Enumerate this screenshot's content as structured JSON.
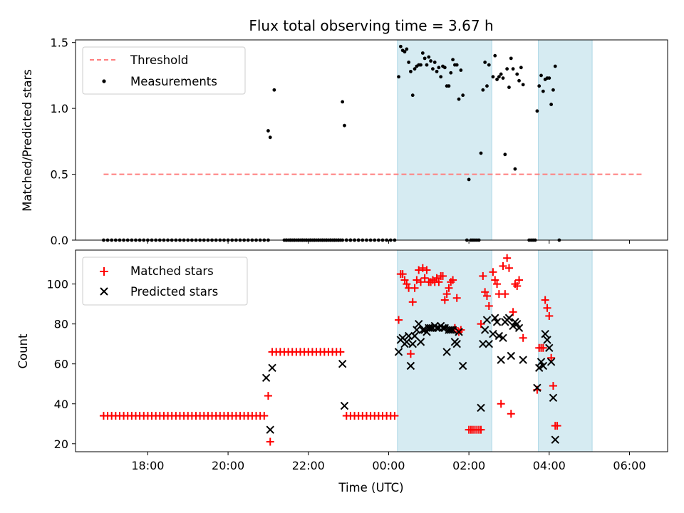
{
  "chart_data": {
    "title": "Flux total observing time = 3.67 h",
    "xlabel": "Time (UTC)",
    "x_units": "hours since 00:00 UTC (negative = previous day)",
    "x_range": [
      -7.8,
      6.95
    ],
    "x_ticks": [
      {
        "value": -6,
        "label": "18:00"
      },
      {
        "value": -4,
        "label": "20:00"
      },
      {
        "value": -2,
        "label": "22:00"
      },
      {
        "value": 0,
        "label": "00:00"
      },
      {
        "value": 2,
        "label": "02:00"
      },
      {
        "value": 4,
        "label": "04:00"
      },
      {
        "value": 6,
        "label": "06:00"
      }
    ],
    "shaded_intervals": [
      [
        0.22,
        2.57
      ],
      [
        3.73,
        5.07
      ]
    ],
    "shade_color": "#add8e6",
    "panels": [
      {
        "type": "scatter",
        "ylabel": "Matched/Predicted stars",
        "ylim": [
          0,
          1.52
        ],
        "y_ticks": [
          {
            "value": 0,
            "label": "0.0"
          },
          {
            "value": 0.5,
            "label": "0.5"
          },
          {
            "value": 1.0,
            "label": "1.0"
          },
          {
            "value": 1.5,
            "label": "1.5"
          }
        ],
        "legend": [
          {
            "label": "Threshold",
            "style": "dashed-line",
            "color": "#ff7f7f"
          },
          {
            "label": "Measurements",
            "style": "dot",
            "color": "#000000"
          }
        ],
        "threshold": {
          "name": "Threshold",
          "value": 0.5,
          "x_range": [
            -7.1,
            6.35
          ],
          "color": "#ff7f7f"
        },
        "measurements_zero": {
          "x_start": -7.1,
          "x_end": -3.0,
          "step": 0.1
        },
        "measurements_zero_2": {
          "x_start": -2.55,
          "x_end": -0.7,
          "step": 0.1
        },
        "measurements_zero_3": {
          "x_start": -1.05,
          "x_end": 0.2,
          "step": 0.1
        },
        "measurements": [
          [
            -2.6,
            0
          ],
          [
            -2.55,
            0
          ],
          [
            -2.5,
            0
          ],
          [
            -2.45,
            0
          ],
          [
            -2.4,
            0
          ],
          [
            -2.35,
            0
          ],
          [
            -2.3,
            0
          ],
          [
            -2.25,
            0
          ],
          [
            -2.2,
            0
          ],
          [
            -2.15,
            0
          ],
          [
            -2.1,
            0
          ],
          [
            -2.05,
            0
          ],
          [
            -2.0,
            0
          ],
          [
            -1.95,
            0
          ],
          [
            -1.9,
            0
          ],
          [
            -1.85,
            0
          ],
          [
            -1.8,
            0
          ],
          [
            -1.75,
            0
          ],
          [
            -1.7,
            0
          ],
          [
            -1.65,
            0
          ],
          [
            -1.6,
            0
          ],
          [
            -1.55,
            0
          ],
          [
            -1.5,
            0
          ],
          [
            -1.45,
            0
          ],
          [
            -1.4,
            0
          ],
          [
            -1.35,
            0
          ],
          [
            -1.3,
            0
          ],
          [
            -1.25,
            0
          ],
          [
            -1.2,
            0
          ],
          [
            -3.0,
            0.83
          ],
          [
            -2.95,
            0.78
          ],
          [
            -2.85,
            1.14
          ],
          [
            -1.15,
            1.05
          ],
          [
            -1.1,
            0.87
          ],
          [
            0.25,
            1.24
          ],
          [
            0.3,
            1.47
          ],
          [
            0.35,
            1.44
          ],
          [
            0.4,
            1.43
          ],
          [
            0.45,
            1.45
          ],
          [
            0.5,
            1.35
          ],
          [
            0.55,
            1.28
          ],
          [
            0.6,
            1.1
          ],
          [
            0.65,
            1.3
          ],
          [
            0.7,
            1.32
          ],
          [
            0.75,
            1.33
          ],
          [
            0.8,
            1.33
          ],
          [
            0.85,
            1.42
          ],
          [
            0.9,
            1.38
          ],
          [
            0.95,
            1.33
          ],
          [
            1.0,
            1.39
          ],
          [
            1.05,
            1.36
          ],
          [
            1.1,
            1.3
          ],
          [
            1.15,
            1.35
          ],
          [
            1.2,
            1.28
          ],
          [
            1.25,
            1.31
          ],
          [
            1.3,
            1.24
          ],
          [
            1.35,
            1.32
          ],
          [
            1.4,
            1.31
          ],
          [
            1.45,
            1.17
          ],
          [
            1.5,
            1.17
          ],
          [
            1.55,
            1.27
          ],
          [
            1.6,
            1.37
          ],
          [
            1.65,
            1.33
          ],
          [
            1.7,
            1.33
          ],
          [
            1.75,
            1.07
          ],
          [
            1.8,
            1.29
          ],
          [
            1.85,
            1.1
          ],
          [
            1.95,
            0.0
          ],
          [
            2.0,
            0.46
          ],
          [
            2.05,
            0.0
          ],
          [
            2.1,
            0.0
          ],
          [
            2.15,
            0.0
          ],
          [
            2.2,
            0.0
          ],
          [
            2.25,
            0.0
          ],
          [
            2.3,
            0.66
          ],
          [
            2.35,
            1.14
          ],
          [
            2.4,
            1.35
          ],
          [
            2.45,
            1.17
          ],
          [
            2.5,
            1.33
          ],
          [
            2.6,
            1.24
          ],
          [
            2.65,
            1.4
          ],
          [
            2.7,
            1.22
          ],
          [
            2.75,
            1.24
          ],
          [
            2.8,
            1.26
          ],
          [
            2.85,
            1.23
          ],
          [
            2.9,
            0.65
          ],
          [
            2.95,
            1.3
          ],
          [
            3.0,
            1.16
          ],
          [
            3.05,
            1.38
          ],
          [
            3.1,
            1.3
          ],
          [
            3.15,
            0.54
          ],
          [
            3.2,
            1.26
          ],
          [
            3.25,
            1.21
          ],
          [
            3.3,
            1.31
          ],
          [
            3.35,
            1.18
          ],
          [
            3.5,
            0.0
          ],
          [
            3.55,
            0.0
          ],
          [
            3.6,
            0.0
          ],
          [
            3.65,
            0.0
          ],
          [
            3.7,
            0.98
          ],
          [
            3.75,
            1.17
          ],
          [
            3.8,
            1.25
          ],
          [
            3.85,
            1.13
          ],
          [
            3.9,
            1.22
          ],
          [
            3.95,
            1.23
          ],
          [
            4.0,
            1.23
          ],
          [
            4.05,
            1.03
          ],
          [
            4.1,
            1.14
          ],
          [
            4.15,
            1.32
          ],
          [
            4.25,
            0.0
          ]
        ]
      },
      {
        "type": "scatter",
        "ylabel": "Count",
        "ylim": [
          16,
          117
        ],
        "y_ticks": [
          {
            "value": 20,
            "label": "20"
          },
          {
            "value": 40,
            "label": "40"
          },
          {
            "value": 60,
            "label": "60"
          },
          {
            "value": 80,
            "label": "80"
          },
          {
            "value": 100,
            "label": "100"
          }
        ],
        "legend": [
          {
            "label": "Matched stars",
            "style": "plus",
            "color": "#ff0000"
          },
          {
            "label": "Predicted stars",
            "style": "x",
            "color": "#000000"
          }
        ],
        "matched_stars": [
          [
            -3.0,
            44
          ],
          [
            -2.95,
            21
          ],
          [
            0.25,
            82
          ],
          [
            0.3,
            105
          ],
          [
            0.35,
            105
          ],
          [
            0.4,
            102
          ],
          [
            0.45,
            100
          ],
          [
            0.5,
            98
          ],
          [
            0.55,
            65
          ],
          [
            0.6,
            91
          ],
          [
            0.65,
            98
          ],
          [
            0.7,
            102
          ],
          [
            0.75,
            107
          ],
          [
            0.8,
            101
          ],
          [
            0.85,
            108
          ],
          [
            0.9,
            103
          ],
          [
            0.95,
            107
          ],
          [
            1.0,
            101
          ],
          [
            1.05,
            101
          ],
          [
            1.1,
            102
          ],
          [
            1.15,
            101
          ],
          [
            1.2,
            103
          ],
          [
            1.25,
            101
          ],
          [
            1.3,
            104
          ],
          [
            1.35,
            104
          ],
          [
            1.4,
            92
          ],
          [
            1.45,
            95
          ],
          [
            1.5,
            98
          ],
          [
            1.55,
            101
          ],
          [
            1.6,
            102
          ],
          [
            1.65,
            78
          ],
          [
            1.7,
            93
          ],
          [
            1.75,
            76
          ],
          [
            1.8,
            77
          ],
          [
            2.3,
            80
          ],
          [
            2.35,
            104
          ],
          [
            2.4,
            96
          ],
          [
            2.45,
            94
          ],
          [
            2.5,
            89
          ],
          [
            2.6,
            106
          ],
          [
            2.65,
            102
          ],
          [
            2.7,
            100
          ],
          [
            2.75,
            95
          ],
          [
            2.8,
            40
          ],
          [
            2.85,
            109
          ],
          [
            2.9,
            95
          ],
          [
            2.95,
            113
          ],
          [
            3.0,
            108
          ],
          [
            3.05,
            35
          ],
          [
            3.1,
            86
          ],
          [
            3.15,
            100
          ],
          [
            3.2,
            99
          ],
          [
            3.25,
            102
          ],
          [
            3.35,
            73
          ],
          [
            3.7,
            47
          ],
          [
            3.75,
            68
          ],
          [
            3.8,
            68
          ],
          [
            3.85,
            68
          ],
          [
            3.9,
            92
          ],
          [
            3.95,
            88
          ],
          [
            4.0,
            84
          ],
          [
            4.05,
            63
          ],
          [
            4.1,
            49
          ],
          [
            4.15,
            29
          ],
          [
            4.2,
            29
          ]
        ],
        "matched_flat_runs": [
          {
            "value": 34,
            "x_start": -7.1,
            "x_end": -3.05,
            "step": 0.1
          },
          {
            "value": 66,
            "x_start": -2.9,
            "x_end": -1.2,
            "step": 0.1
          },
          {
            "value": 34,
            "x_start": -1.05,
            "x_end": 0.2,
            "step": 0.1
          },
          {
            "value": 27,
            "x_start": 2.0,
            "x_end": 2.3,
            "step": 0.05
          }
        ],
        "predicted_stars": [
          [
            -3.05,
            53
          ],
          [
            -2.95,
            27
          ],
          [
            -2.9,
            58
          ],
          [
            -1.15,
            60
          ],
          [
            -1.1,
            39
          ],
          [
            0.25,
            66
          ],
          [
            0.3,
            72
          ],
          [
            0.35,
            73
          ],
          [
            0.4,
            70
          ],
          [
            0.45,
            71
          ],
          [
            0.5,
            74
          ],
          [
            0.55,
            59
          ],
          [
            0.6,
            70
          ],
          [
            0.65,
            74
          ],
          [
            0.7,
            77
          ],
          [
            0.75,
            80
          ],
          [
            0.8,
            71
          ],
          [
            0.85,
            77
          ],
          [
            0.9,
            77
          ],
          [
            0.95,
            76
          ],
          [
            1.0,
            78
          ],
          [
            1.05,
            78
          ],
          [
            1.1,
            78
          ],
          [
            1.15,
            79
          ],
          [
            1.2,
            78
          ],
          [
            1.25,
            78
          ],
          [
            1.3,
            79
          ],
          [
            1.35,
            78
          ],
          [
            1.4,
            78
          ],
          [
            1.45,
            66
          ],
          [
            1.5,
            77
          ],
          [
            1.55,
            77
          ],
          [
            1.6,
            77
          ],
          [
            1.65,
            71
          ],
          [
            1.7,
            70
          ],
          [
            1.75,
            76
          ],
          [
            1.85,
            59
          ],
          [
            2.3,
            38
          ],
          [
            2.35,
            70
          ],
          [
            2.4,
            77
          ],
          [
            2.45,
            82
          ],
          [
            2.5,
            70
          ],
          [
            2.6,
            75
          ],
          [
            2.65,
            83
          ],
          [
            2.7,
            81
          ],
          [
            2.75,
            74
          ],
          [
            2.8,
            62
          ],
          [
            2.85,
            73
          ],
          [
            2.9,
            81
          ],
          [
            2.95,
            82
          ],
          [
            3.0,
            83
          ],
          [
            3.05,
            64
          ],
          [
            3.1,
            79
          ],
          [
            3.15,
            81
          ],
          [
            3.2,
            80
          ],
          [
            3.25,
            78
          ],
          [
            3.35,
            62
          ],
          [
            3.7,
            48
          ],
          [
            3.75,
            58
          ],
          [
            3.8,
            61
          ],
          [
            3.85,
            59
          ],
          [
            3.9,
            75
          ],
          [
            3.95,
            72
          ],
          [
            4.0,
            68
          ],
          [
            4.05,
            61
          ],
          [
            4.1,
            43
          ],
          [
            4.15,
            22
          ]
        ]
      }
    ]
  }
}
